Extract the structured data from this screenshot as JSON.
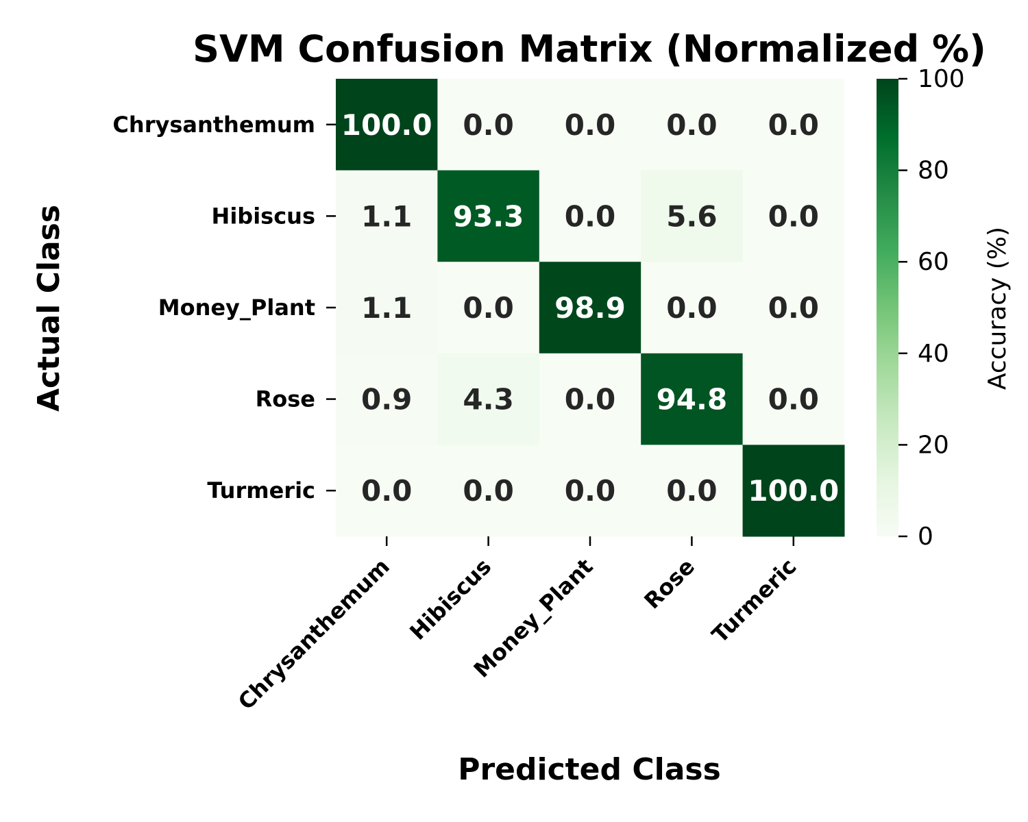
{
  "chart_data": {
    "type": "heatmap",
    "title": "SVM Confusion Matrix (Normalized %)",
    "xlabel": "Predicted Class",
    "ylabel": "Actual Class",
    "x_categories": [
      "Chrysanthemum",
      "Hibiscus",
      "Money_Plant",
      "Rose",
      "Turmeric"
    ],
    "y_categories": [
      "Chrysanthemum",
      "Hibiscus",
      "Money_Plant",
      "Rose",
      "Turmeric"
    ],
    "values": [
      [
        100.0,
        0.0,
        0.0,
        0.0,
        0.0
      ],
      [
        1.1,
        93.3,
        0.0,
        5.6,
        0.0
      ],
      [
        1.1,
        0.0,
        98.9,
        0.0,
        0.0
      ],
      [
        0.9,
        4.3,
        0.0,
        94.8,
        0.0
      ],
      [
        0.0,
        0.0,
        0.0,
        0.0,
        100.0
      ]
    ],
    "value_format": "0.0",
    "colorbar": {
      "label": "Accuracy (%)",
      "range": [
        0,
        100
      ],
      "ticks": [
        0,
        20,
        40,
        60,
        80,
        100
      ],
      "colormap": "Greens",
      "colors": [
        "#f7fcf5",
        "#e5f5e0",
        "#c7e9c0",
        "#a1d99b",
        "#74c476",
        "#41ab5d",
        "#238b45",
        "#006d2c",
        "#00441b"
      ]
    }
  }
}
